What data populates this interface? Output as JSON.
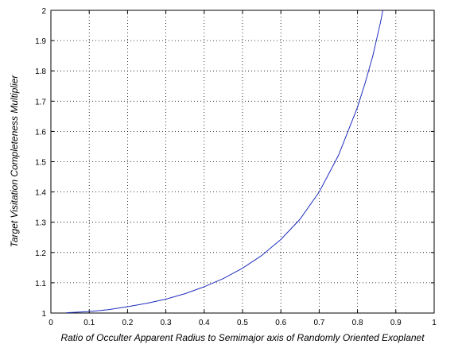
{
  "chart_data": {
    "type": "line",
    "title": "",
    "xlabel": "Ratio of Occulter Apparent Radius to Semimajor axis of Randomly Oriented  Exoplanet",
    "ylabel": "Target Visitation Completeness Multiplier",
    "xlim": [
      0,
      1
    ],
    "ylim": [
      1,
      2
    ],
    "xticks": [
      "0",
      "0.1",
      "0.2",
      "0.3",
      "0.4",
      "0.5",
      "0.6",
      "0.7",
      "0.8",
      "0.9",
      "1"
    ],
    "yticks": [
      "1",
      "1.1",
      "1.2",
      "1.3",
      "1.4",
      "1.5",
      "1.6",
      "1.7",
      "1.8",
      "1.9",
      "2"
    ],
    "grid": true,
    "series": [
      {
        "color": "#1f2fbf",
        "x": [
          0.04,
          0.1,
          0.15,
          0.2,
          0.25,
          0.3,
          0.35,
          0.4,
          0.45,
          0.5,
          0.55,
          0.6,
          0.65,
          0.7,
          0.75,
          0.8,
          0.82,
          0.84,
          0.86,
          0.866
        ],
        "y": [
          1.001,
          1.005,
          1.011,
          1.021,
          1.032,
          1.046,
          1.064,
          1.087,
          1.114,
          1.148,
          1.19,
          1.243,
          1.31,
          1.4,
          1.52,
          1.68,
          1.76,
          1.85,
          1.96,
          2.0
        ]
      }
    ]
  }
}
